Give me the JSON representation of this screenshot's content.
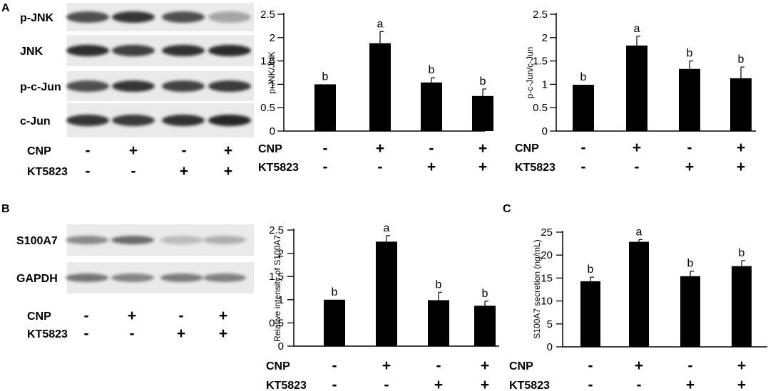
{
  "panel_letters": {
    "a": "A",
    "b": "B",
    "c": "C"
  },
  "treatments": {
    "cnp_label": "CNP",
    "kt_label": "KT5823",
    "cnp_signs": [
      "-",
      "+",
      "-",
      "+"
    ],
    "kt_signs": [
      "-",
      "-",
      "+",
      "+"
    ]
  },
  "blot_a": {
    "rows": [
      {
        "label": "p-JNK",
        "intensity": [
          0.72,
          0.85,
          0.72,
          0.32
        ]
      },
      {
        "label": "JNK",
        "intensity": [
          0.88,
          0.8,
          0.86,
          0.9
        ]
      },
      {
        "label": "p-c-Jun",
        "intensity": [
          0.72,
          0.85,
          0.78,
          0.82
        ]
      },
      {
        "label": "c-Jun",
        "intensity": [
          0.85,
          0.82,
          0.86,
          0.92
        ]
      }
    ]
  },
  "blot_b": {
    "rows": [
      {
        "label": "S100A7",
        "intensity": [
          0.45,
          0.6,
          0.22,
          0.28
        ]
      },
      {
        "label": "GAPDH",
        "intensity": [
          0.55,
          0.48,
          0.52,
          0.5
        ]
      }
    ]
  },
  "chart_data": [
    {
      "type": "bar",
      "panel": "A",
      "title": "",
      "xlabel": "",
      "ylabel": "p-JNK/JNK",
      "ylim": [
        0,
        2.5
      ],
      "yticks": [
        "0",
        "0.5",
        "1",
        "1.5",
        "2",
        "2.5"
      ],
      "values": [
        1.0,
        1.88,
        1.04,
        0.75
      ],
      "errors": [
        0.0,
        0.25,
        0.1,
        0.15
      ],
      "letters": [
        "b",
        "a",
        "b",
        "b"
      ],
      "grid": false
    },
    {
      "type": "bar",
      "panel": "A",
      "title": "",
      "xlabel": "",
      "ylabel": "p-c-Jun/c-Jun",
      "ylim": [
        0,
        2.5
      ],
      "yticks": [
        "0",
        "0.5",
        "1",
        "1.5",
        "2",
        "2.5"
      ],
      "values": [
        0.99,
        1.83,
        1.33,
        1.13
      ],
      "errors": [
        0.0,
        0.2,
        0.17,
        0.24
      ],
      "letters": [
        "b",
        "a",
        "b",
        "b"
      ],
      "grid": false
    },
    {
      "type": "bar",
      "panel": "B",
      "title": "",
      "xlabel": "",
      "ylabel": "Relative intensity of S100A7",
      "ylim": [
        0,
        2.5
      ],
      "yticks": [
        "0",
        "0.5",
        "1",
        "1.5",
        "2",
        "2.5"
      ],
      "values": [
        1.0,
        2.25,
        0.99,
        0.87
      ],
      "errors": [
        0.0,
        0.13,
        0.17,
        0.1
      ],
      "letters": [
        "b",
        "a",
        "b",
        "b"
      ],
      "grid": false
    },
    {
      "type": "bar",
      "panel": "C",
      "title": "",
      "xlabel": "",
      "ylabel": "S100A7 secretion (ng/mL)",
      "ylim": [
        0,
        25
      ],
      "yticks": [
        "0",
        "5",
        "10",
        "15",
        "20",
        "25"
      ],
      "values": [
        14.3,
        22.9,
        15.4,
        17.6
      ],
      "errors": [
        0.9,
        0.5,
        1.1,
        1.2
      ],
      "letters": [
        "b",
        "a",
        "b",
        "b"
      ],
      "grid": false
    }
  ]
}
